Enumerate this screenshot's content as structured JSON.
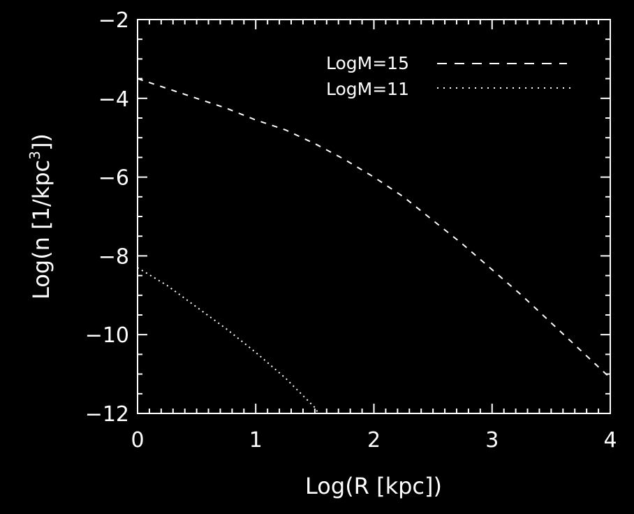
{
  "chart_data": {
    "type": "line",
    "xlabel": "Log(R [kpc])",
    "ylabel_main": "Log(n [1/kpc",
    "ylabel_sup": "3",
    "ylabel_tail": "])",
    "xlim": [
      0,
      4
    ],
    "ylim": [
      -12,
      -2
    ],
    "xticks": [
      0,
      1,
      2,
      3,
      4
    ],
    "xtick_labels": [
      "0",
      "1",
      "2",
      "3",
      "4"
    ],
    "yticks": [
      -12,
      -10,
      -8,
      -6,
      -4,
      -2
    ],
    "ytick_labels": [
      "−12",
      "−10",
      "−8",
      "−6",
      "−4",
      "−2"
    ],
    "grid": false,
    "legend_position": "top-right",
    "colors": {
      "background": "#000000",
      "foreground": "#ffffff"
    },
    "series": [
      {
        "name": "LogM=15",
        "style": "dashed",
        "x": [
          0.0,
          0.25,
          0.5,
          0.75,
          1.0,
          1.25,
          1.5,
          1.75,
          2.0,
          2.25,
          2.5,
          2.75,
          3.0,
          3.25,
          3.5,
          3.75,
          4.0
        ],
        "y": [
          -3.5,
          -3.75,
          -4.0,
          -4.25,
          -4.55,
          -4.8,
          -5.15,
          -5.55,
          -6.0,
          -6.5,
          -7.1,
          -7.7,
          -8.35,
          -9.0,
          -9.7,
          -10.4,
          -11.1
        ]
      },
      {
        "name": "LogM=11",
        "style": "dotted",
        "x": [
          0.0,
          0.25,
          0.5,
          0.75,
          1.0,
          1.25,
          1.5,
          1.53
        ],
        "y": [
          -8.3,
          -8.75,
          -9.3,
          -9.85,
          -10.45,
          -11.1,
          -11.85,
          -12.0
        ]
      }
    ]
  }
}
